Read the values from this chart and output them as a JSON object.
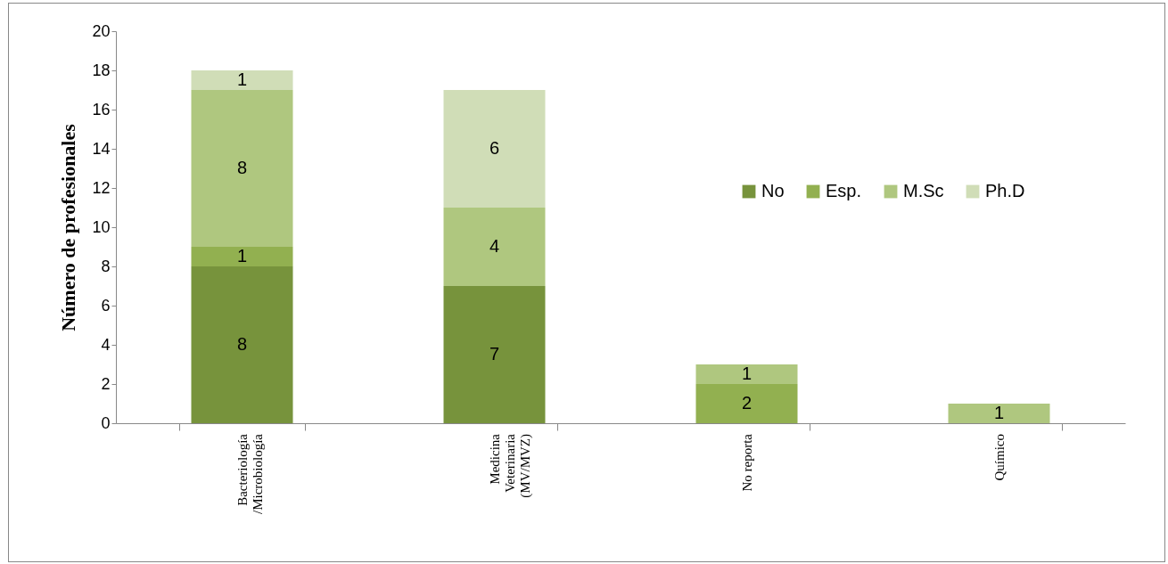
{
  "chart_data": {
    "type": "bar",
    "stacked": true,
    "ylabel": "Número de profesionales",
    "categories": [
      "Bacteriología\n/Microbiología",
      "Medicina\nVeterinaria\n(MV/MVZ)",
      "No reporta",
      "Químico"
    ],
    "series": [
      {
        "name": "No",
        "color": "#77933c",
        "values": [
          8,
          7,
          null,
          null
        ]
      },
      {
        "name": "Esp.",
        "color": "#92b050",
        "values": [
          1,
          null,
          2,
          null
        ]
      },
      {
        "name": "M.Sc",
        "color": "#afc77f",
        "values": [
          8,
          4,
          1,
          1
        ]
      },
      {
        "name": "Ph.D",
        "color": "#d0ddb7",
        "values": [
          1,
          6,
          null,
          null
        ]
      }
    ],
    "ylim": [
      0,
      20
    ],
    "yticks": [
      0,
      2,
      4,
      6,
      8,
      10,
      12,
      14,
      16,
      18,
      20
    ],
    "data_labels": true,
    "legend": "right",
    "grid": false
  }
}
